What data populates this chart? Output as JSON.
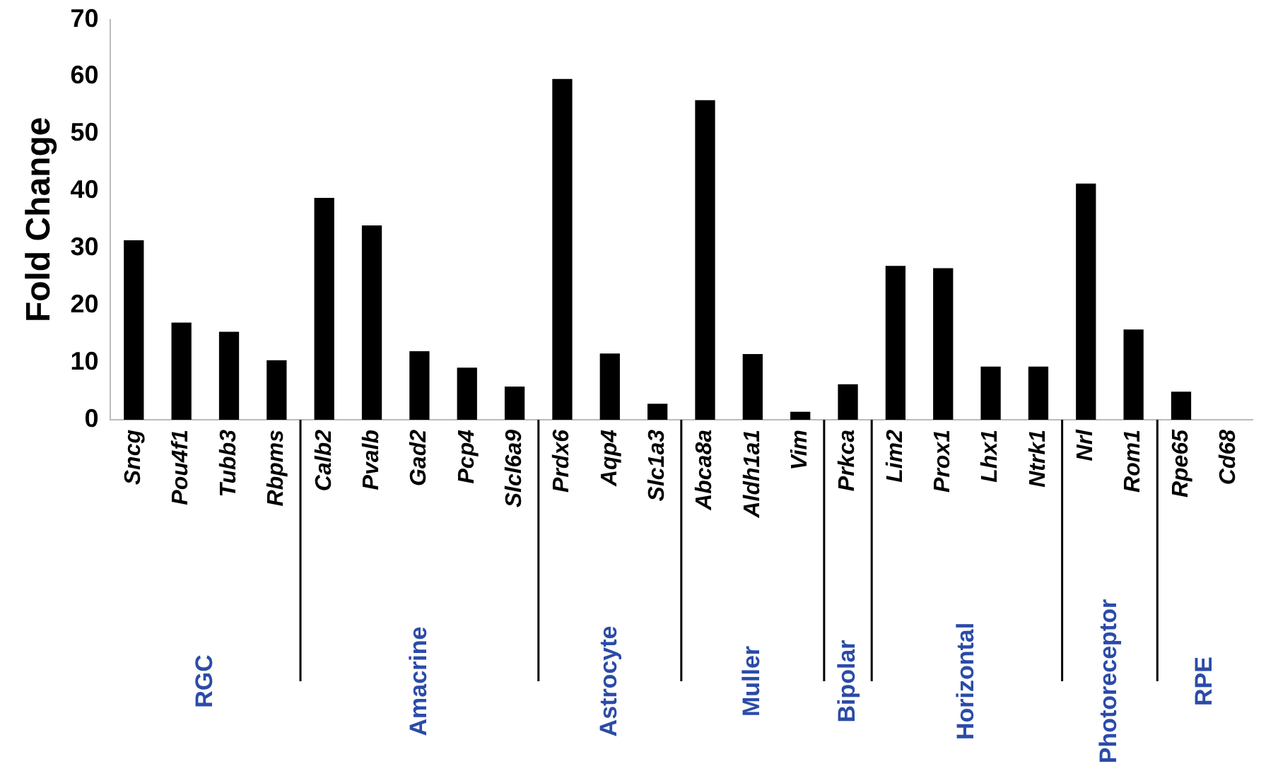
{
  "chart_data": {
    "type": "bar",
    "ylabel": "Fold Change",
    "categories": [
      "Sncg",
      "Pou4f1",
      "Tubb3",
      "Rbpms",
      "Calb2",
      "Pvalb",
      "Gad2",
      "Pcp4",
      "Slcl6a9",
      "Prdx6",
      "Aqp4",
      "Slc1a3",
      "Abca8a",
      "Aldh1a1",
      "Vim",
      "Prkca",
      "Lim2",
      "Prox1",
      "Lhx1",
      "Ntrk1",
      "Nrl",
      "Rom1",
      "Rpe65",
      "Cd68"
    ],
    "values": [
      31.4,
      17,
      15.4,
      10.4,
      38.8,
      34,
      12,
      9.1,
      5.8,
      59.6,
      11.6,
      2.8,
      55.9,
      11.5,
      1.4,
      6.2,
      26.9,
      26.5,
      9.3,
      9.3,
      41.3,
      15.8,
      4.9,
      0
    ],
    "color": "#000000",
    "ylim": [
      0,
      70
    ],
    "yticks": [
      0,
      10,
      20,
      30,
      40,
      50,
      60,
      70
    ],
    "grid": false,
    "legend": false,
    "annotations": [
      "RGC",
      "Amacrine",
      "Astrocyte",
      "Muller",
      "Bipolar",
      "Horizontal",
      "Photoreceptor",
      "RPE"
    ]
  }
}
